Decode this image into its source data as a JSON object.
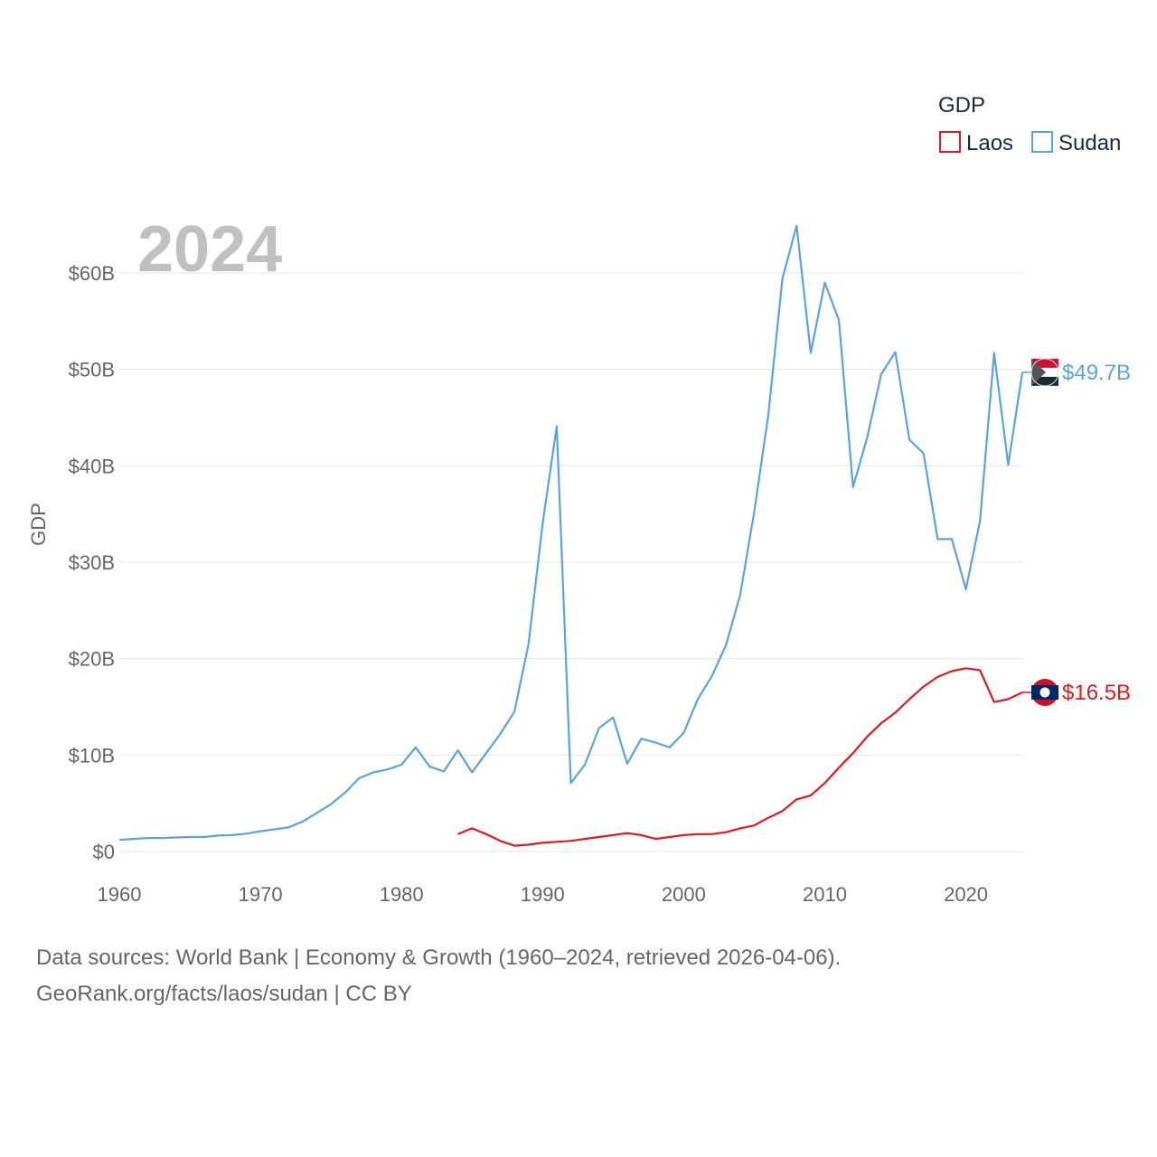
{
  "chart_data": {
    "type": "line",
    "title": "",
    "year_label": "2024",
    "ylabel": "GDP",
    "xlabel": "",
    "xlim": [
      1960,
      2024
    ],
    "ylim": [
      0,
      60
    ],
    "x_ticks": [
      1960,
      1970,
      1980,
      1990,
      2000,
      2010,
      2020
    ],
    "y_ticks": [
      {
        "value": 0,
        "label": "$0"
      },
      {
        "value": 10,
        "label": "$10B"
      },
      {
        "value": 20,
        "label": "$20B"
      },
      {
        "value": 30,
        "label": "$30B"
      },
      {
        "value": 40,
        "label": "$40B"
      },
      {
        "value": 50,
        "label": "$50B"
      },
      {
        "value": 60,
        "label": "$60B"
      }
    ],
    "legend": {
      "title": "GDP",
      "position": "top-right",
      "entries": [
        "Laos",
        "Sudan"
      ]
    },
    "series": [
      {
        "name": "Sudan",
        "color": "#5ba3e0",
        "end_label": "$49.7B",
        "points": [
          [
            1960,
            1.2
          ],
          [
            1961,
            1.3
          ],
          [
            1962,
            1.4
          ],
          [
            1963,
            1.4
          ],
          [
            1964,
            1.45
          ],
          [
            1965,
            1.5
          ],
          [
            1966,
            1.5
          ],
          [
            1967,
            1.65
          ],
          [
            1968,
            1.7
          ],
          [
            1969,
            1.85
          ],
          [
            1970,
            2.1
          ],
          [
            1971,
            2.3
          ],
          [
            1972,
            2.5
          ],
          [
            1973,
            3.1
          ],
          [
            1974,
            4.0
          ],
          [
            1975,
            4.9
          ],
          [
            1976,
            6.1
          ],
          [
            1977,
            7.6
          ],
          [
            1978,
            8.2
          ],
          [
            1979,
            8.5
          ],
          [
            1980,
            9.0
          ],
          [
            1981,
            10.8
          ],
          [
            1982,
            8.8
          ],
          [
            1983,
            8.3
          ],
          [
            1984,
            10.5
          ],
          [
            1985,
            8.2
          ],
          [
            1986,
            10.2
          ],
          [
            1987,
            12.2
          ],
          [
            1988,
            14.5
          ],
          [
            1989,
            21.5
          ],
          [
            1990,
            34.0
          ],
          [
            1991,
            44.1
          ],
          [
            1992,
            7.1
          ],
          [
            1993,
            9.0
          ],
          [
            1994,
            12.8
          ],
          [
            1995,
            13.9
          ],
          [
            1996,
            9.1
          ],
          [
            1997,
            11.7
          ],
          [
            1998,
            11.3
          ],
          [
            1999,
            10.8
          ],
          [
            2000,
            12.3
          ],
          [
            2001,
            15.8
          ],
          [
            2002,
            18.2
          ],
          [
            2003,
            21.4
          ],
          [
            2004,
            26.6
          ],
          [
            2005,
            35.2
          ],
          [
            2006,
            45.3
          ],
          [
            2007,
            59.4
          ],
          [
            2008,
            64.9
          ],
          [
            2009,
            51.7
          ],
          [
            2010,
            59.0
          ],
          [
            2011,
            55.1
          ],
          [
            2012,
            37.8
          ],
          [
            2013,
            42.9
          ],
          [
            2014,
            49.5
          ],
          [
            2015,
            51.8
          ],
          [
            2016,
            42.7
          ],
          [
            2017,
            41.3
          ],
          [
            2018,
            32.4
          ],
          [
            2019,
            32.4
          ],
          [
            2020,
            27.2
          ],
          [
            2021,
            34.3
          ],
          [
            2022,
            51.7
          ],
          [
            2023,
            40.1
          ],
          [
            2024,
            49.7
          ]
        ]
      },
      {
        "name": "Laos",
        "color": "#e8161f",
        "end_label": "$16.5B",
        "points": [
          [
            1984,
            1.8
          ],
          [
            1985,
            2.4
          ],
          [
            1986,
            1.8
          ],
          [
            1987,
            1.1
          ],
          [
            1988,
            0.6
          ],
          [
            1989,
            0.7
          ],
          [
            1990,
            0.9
          ],
          [
            1991,
            1.0
          ],
          [
            1992,
            1.1
          ],
          [
            1993,
            1.3
          ],
          [
            1994,
            1.5
          ],
          [
            1995,
            1.7
          ],
          [
            1996,
            1.9
          ],
          [
            1997,
            1.7
          ],
          [
            1998,
            1.3
          ],
          [
            1999,
            1.5
          ],
          [
            2000,
            1.7
          ],
          [
            2001,
            1.8
          ],
          [
            2002,
            1.8
          ],
          [
            2003,
            2.0
          ],
          [
            2004,
            2.4
          ],
          [
            2005,
            2.7
          ],
          [
            2006,
            3.5
          ],
          [
            2007,
            4.2
          ],
          [
            2008,
            5.4
          ],
          [
            2009,
            5.8
          ],
          [
            2010,
            7.1
          ],
          [
            2011,
            8.7
          ],
          [
            2012,
            10.2
          ],
          [
            2013,
            11.9
          ],
          [
            2014,
            13.3
          ],
          [
            2015,
            14.4
          ],
          [
            2016,
            15.8
          ],
          [
            2017,
            17.1
          ],
          [
            2018,
            18.1
          ],
          [
            2019,
            18.7
          ],
          [
            2020,
            19.0
          ],
          [
            2021,
            18.8
          ],
          [
            2022,
            15.5
          ],
          [
            2023,
            15.8
          ],
          [
            2024,
            16.5
          ]
        ]
      }
    ]
  },
  "footer": {
    "line1": "Data sources: World Bank | Economy & Growth (1960–2024, retrieved 2026-04-06).",
    "line2": "GeoRank.org/facts/laos/sudan | CC BY"
  }
}
